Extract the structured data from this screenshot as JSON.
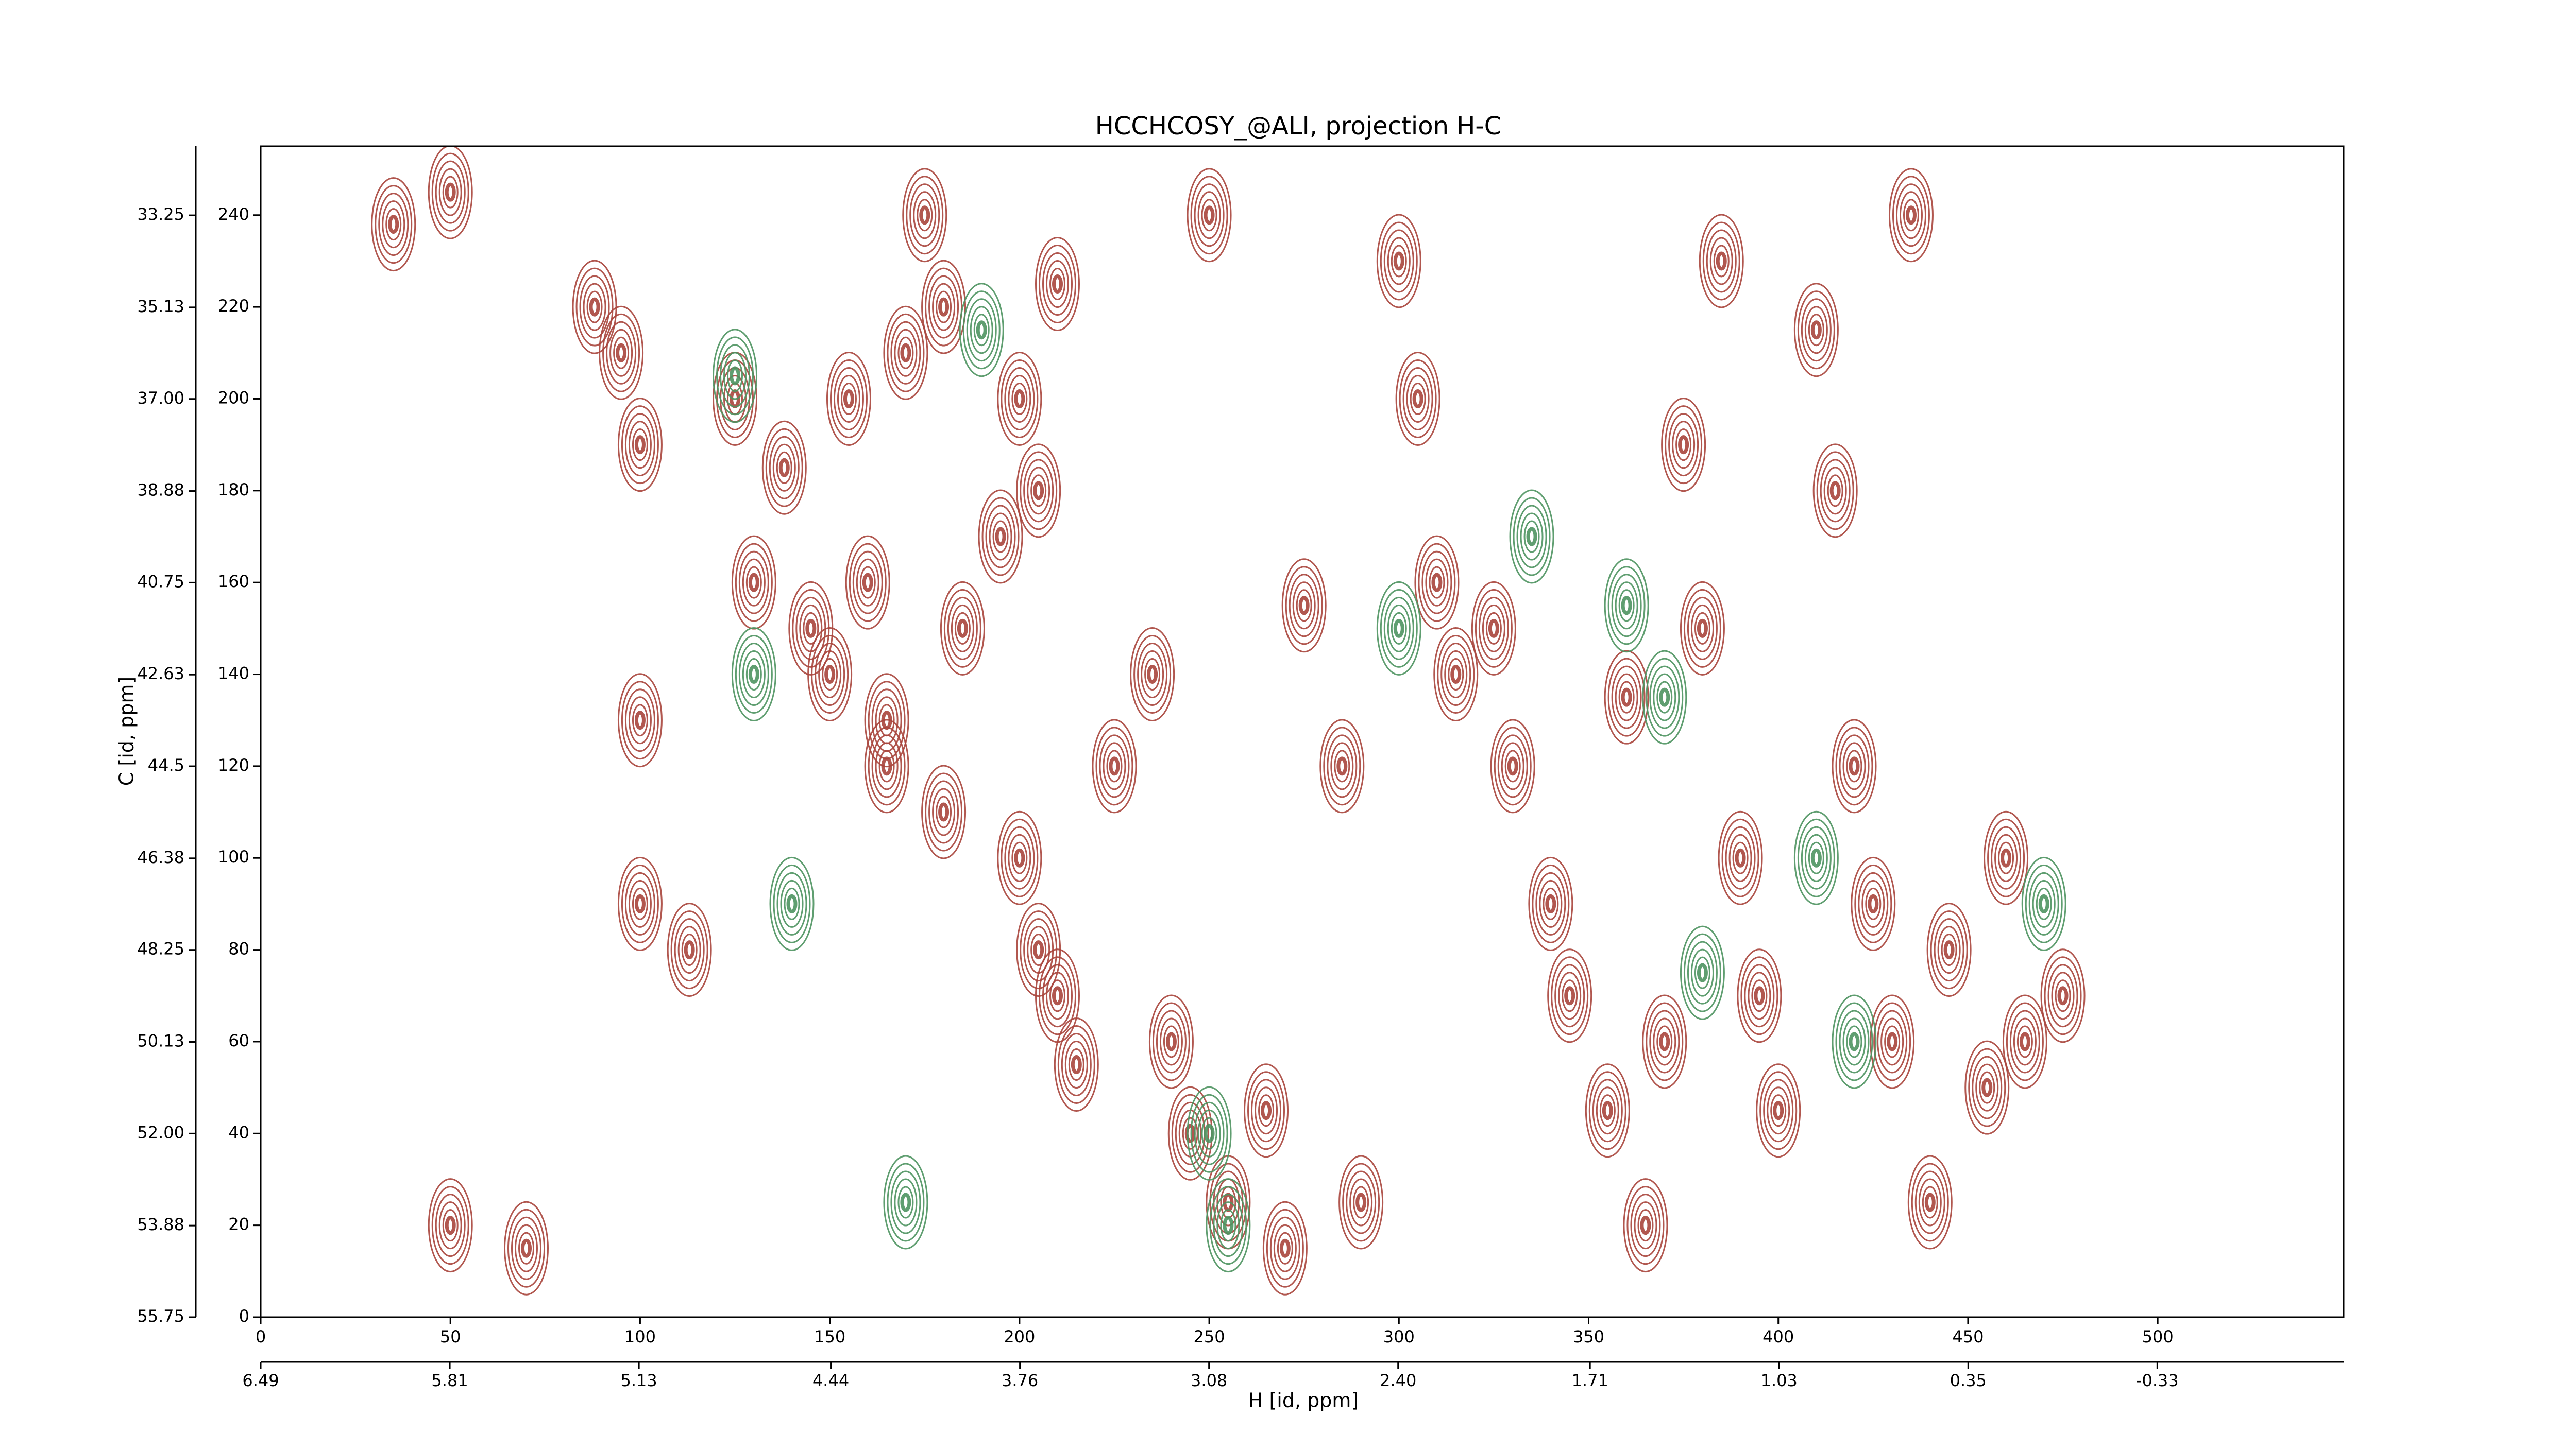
{
  "chart_data": {
    "type": "contour",
    "title": "HCCHCOSY_@ALI, projection H-C",
    "x_label": "H [id, ppm]",
    "y_label": "C [id, ppm]",
    "xlim": [
      0,
      549
    ],
    "ylim": [
      0,
      255
    ],
    "xticks": [
      0,
      50,
      100,
      150,
      200,
      250,
      300,
      350,
      400,
      450,
      500
    ],
    "yticks": [
      0,
      20,
      40,
      60,
      80,
      100,
      120,
      140,
      160,
      180,
      200,
      220,
      240
    ],
    "x2lim": [
      6.49,
      -1.0
    ],
    "x2ticks": [
      6.49,
      5.81,
      5.13,
      4.44,
      3.76,
      3.08,
      {
        "value": 2.4,
        "label": "2.40"
      },
      1.71,
      1.03,
      0.35,
      -0.33
    ],
    "y2lim": [
      55.75,
      31.84
    ],
    "y2ticks": [
      55.75,
      53.88,
      {
        "value": 52,
        "label": "52.00"
      },
      50.13,
      48.25,
      46.38,
      44.5,
      42.63,
      40.75,
      38.88,
      {
        "value": 37,
        "label": "37.00"
      },
      35.13,
      33.25
    ],
    "series": [
      {
        "color": "#a8453c",
        "x": [
          35,
          50,
          88,
          95,
          100,
          100,
          113,
          125,
          138,
          145,
          150,
          155,
          160,
          165,
          165,
          170,
          175,
          180,
          185,
          195,
          200,
          205,
          205,
          210,
          215,
          225,
          235,
          240,
          245,
          250,
          255,
          265,
          270,
          275,
          285,
          290,
          300,
          305,
          310,
          315,
          325,
          330,
          340,
          345,
          355,
          360,
          365,
          370,
          375,
          380,
          385,
          390,
          395,
          400,
          410,
          415,
          420,
          425,
          430,
          435,
          440,
          445,
          455,
          460,
          465,
          475,
          50,
          70,
          100,
          130,
          180,
          200,
          210
        ],
        "y": [
          238,
          245,
          220,
          210,
          190,
          90,
          80,
          200,
          185,
          150,
          140,
          200,
          160,
          130,
          120,
          210,
          240,
          220,
          150,
          170,
          200,
          180,
          80,
          70,
          55,
          120,
          140,
          60,
          40,
          240,
          25,
          45,
          15,
          155,
          120,
          25,
          230,
          200,
          160,
          140,
          150,
          120,
          90,
          70,
          45,
          135,
          20,
          60,
          190,
          150,
          230,
          100,
          70,
          45,
          215,
          180,
          120,
          90,
          60,
          240,
          25,
          80,
          50,
          100,
          60,
          70,
          20,
          15,
          130,
          160,
          110,
          100,
          225
        ]
      },
      {
        "color": "#4e9360",
        "x": [
          125,
          130,
          140,
          170,
          250,
          255,
          300,
          335,
          360,
          370,
          380,
          410,
          420,
          470,
          190
        ],
        "y": [
          205,
          140,
          90,
          25,
          40,
          20,
          150,
          170,
          155,
          135,
          75,
          100,
          60,
          90,
          215
        ]
      }
    ]
  }
}
